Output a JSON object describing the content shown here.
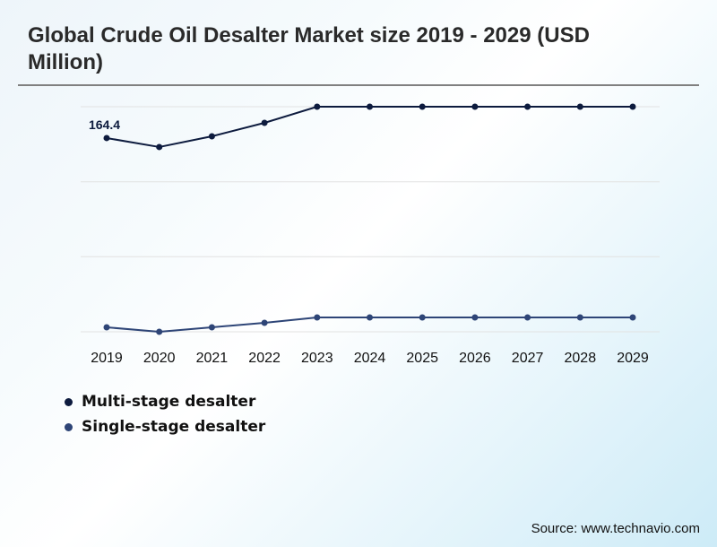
{
  "header": {
    "title": "Global Crude Oil Desalter Market size 2019 - 2029 (USD Million)"
  },
  "footer": {
    "source": "Source: www.technavio.com"
  },
  "chart_data": {
    "type": "line",
    "title": "Global Crude Oil Desalter Market size 2019 - 2029 (USD Million)",
    "xlabel": "",
    "ylabel": "",
    "x": [
      "2019",
      "2020",
      "2021",
      "2022",
      "2023",
      "2024",
      "2025",
      "2026",
      "2027",
      "2028",
      "2029"
    ],
    "ylim": [
      0,
      191
    ],
    "grid": true,
    "grid_values": [
      0,
      63.7,
      127.3,
      191
    ],
    "y_axis_visible": false,
    "legend_position": "bottom-left",
    "series": [
      {
        "name": "Multi-stage desalter",
        "color": "#0d1b3e",
        "values": [
          164.4,
          156.8,
          165.9,
          177.3,
          191.0,
          191.0,
          191.0,
          191.0,
          191.0,
          191.0,
          191.0
        ]
      },
      {
        "name": "Single-stage desalter",
        "color": "#2e4577",
        "values": [
          3.8,
          0.0,
          3.8,
          7.6,
          12.2,
          12.2,
          12.2,
          12.2,
          12.2,
          12.2,
          12.2
        ]
      }
    ],
    "annotations": [
      {
        "series": 0,
        "index": 0,
        "text": "164.4"
      }
    ]
  }
}
